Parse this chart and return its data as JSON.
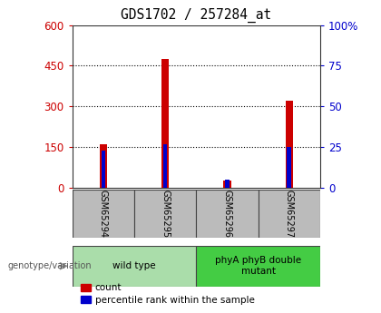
{
  "title": "GDS1702 / 257284_at",
  "samples": [
    "GSM65294",
    "GSM65295",
    "GSM65296",
    "GSM65297"
  ],
  "counts": [
    160,
    475,
    28,
    320
  ],
  "percentile_ranks": [
    23,
    27,
    5,
    25
  ],
  "left_ylim": [
    0,
    600
  ],
  "left_yticks": [
    0,
    150,
    300,
    450,
    600
  ],
  "right_ylim": [
    0,
    100
  ],
  "right_yticks": [
    0,
    25,
    50,
    75,
    100
  ],
  "groups": [
    {
      "label": "wild type",
      "samples": [
        0,
        1
      ],
      "color": "#aaddaa"
    },
    {
      "label": "phyA phyB double\nmutant",
      "samples": [
        2,
        3
      ],
      "color": "#44cc44"
    }
  ],
  "bar_color": "#cc0000",
  "percentile_color": "#0000cc",
  "left_label_color": "#cc0000",
  "right_label_color": "#0000cc",
  "legend_items": [
    "count",
    "percentile rank within the sample"
  ],
  "genotype_label": "genotype/variation",
  "sample_box_color": "#bbbbbb",
  "bar_width": 0.12
}
